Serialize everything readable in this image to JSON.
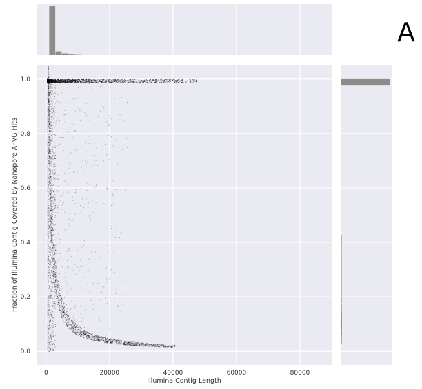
{
  "panel_label": "A",
  "chart_data": {
    "type": "scatter",
    "title": "",
    "xlabel": "Illumina Contig Length",
    "ylabel": "Fraction of Illumina Contig Covered By Nanopore AFVG Hits",
    "xlim": [
      -3000,
      90000
    ],
    "ylim": [
      -0.05,
      1.05
    ],
    "x_ticks": [
      0,
      20000,
      40000,
      60000,
      80000
    ],
    "y_ticks": [
      0.0,
      0.2,
      0.4,
      0.6,
      0.8,
      1.0
    ],
    "x_tick_labels": [
      "0",
      "20000",
      "40000",
      "60000",
      "80000"
    ],
    "y_tick_labels": [
      "0.0",
      "0.2",
      "0.4",
      "0.6",
      "0.8",
      "1.0"
    ],
    "grid": true,
    "style": {
      "background": "#eaeaf2",
      "grid_color": "#ffffff",
      "point_color": "#000000",
      "hist_color": "#8c8c8c"
    },
    "scatter_density": {
      "description_of_shape": "dense points along y=1.0 out to ~20000 and along the lower envelope y≈600/length; sparse fill between",
      "max_x_full_coverage": 47000,
      "max_x_low_coverage": 40000,
      "n_points": 5200
    },
    "top_histogram": {
      "bin_width": 2000,
      "bin_starts": [
        1000,
        3000,
        5000,
        7000,
        9000
      ],
      "relative_heights": [
        1.0,
        0.075,
        0.035,
        0.012,
        0.005
      ]
    },
    "right_histogram": {
      "bin_width": 0.025,
      "bin_starts": [
        0.975,
        0.4,
        0.375,
        0.35,
        0.325,
        0.3,
        0.275,
        0.25,
        0.225,
        0.2,
        0.175,
        0.15,
        0.125,
        0.1,
        0.075,
        0.05,
        0.025
      ],
      "relative_lengths": [
        1.0,
        0.004,
        0.004,
        0.005,
        0.005,
        0.006,
        0.006,
        0.006,
        0.007,
        0.008,
        0.009,
        0.01,
        0.012,
        0.013,
        0.014,
        0.012,
        0.01
      ]
    }
  }
}
